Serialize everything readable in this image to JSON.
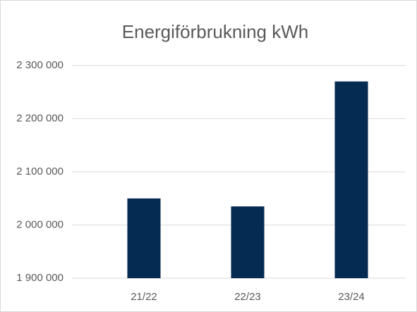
{
  "chart_data": {
    "type": "bar",
    "title": "Energiförbrukning kWh",
    "categories": [
      "21/22",
      "22/23",
      "23/24"
    ],
    "values": [
      2050000,
      2035000,
      2270000
    ],
    "color": "#062b52",
    "ylim": [
      1900000,
      2300000
    ],
    "yticks": [
      {
        "value": 1900000,
        "label": "1 900 000"
      },
      {
        "value": 2000000,
        "label": "2 000 000"
      },
      {
        "value": 2100000,
        "label": "2 100 000"
      },
      {
        "value": 2200000,
        "label": "2 200 000"
      },
      {
        "value": 2300000,
        "label": "2 300 000"
      }
    ],
    "grid": true
  }
}
